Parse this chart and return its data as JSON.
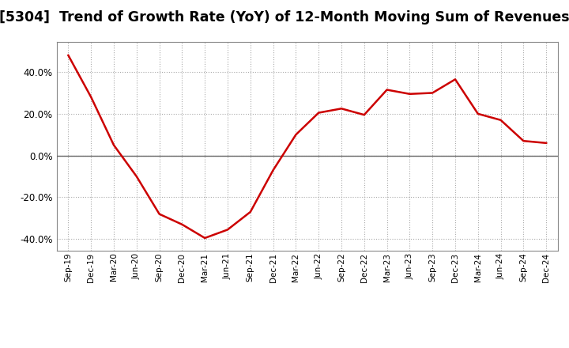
{
  "title": "[5304]  Trend of Growth Rate (YoY) of 12-Month Moving Sum of Revenues",
  "title_fontsize": 12.5,
  "line_color": "#cc0000",
  "line_width": 1.8,
  "background_color": "#ffffff",
  "grid_color": "#aaaaaa",
  "x_labels": [
    "Sep-19",
    "Dec-19",
    "Mar-20",
    "Jun-20",
    "Sep-20",
    "Dec-20",
    "Mar-21",
    "Jun-21",
    "Sep-21",
    "Dec-21",
    "Mar-22",
    "Jun-22",
    "Sep-22",
    "Dec-22",
    "Mar-23",
    "Jun-23",
    "Sep-23",
    "Dec-23",
    "Mar-24",
    "Jun-24",
    "Sep-24",
    "Dec-24"
  ],
  "y_values": [
    0.48,
    0.28,
    0.05,
    -0.1,
    -0.28,
    -0.33,
    -0.395,
    -0.355,
    -0.27,
    -0.07,
    0.1,
    0.205,
    0.225,
    0.195,
    0.315,
    0.295,
    0.3,
    0.365,
    0.2,
    0.17,
    0.07,
    0.06
  ],
  "ylim": [
    -0.455,
    0.545
  ],
  "yticks": [
    -0.4,
    -0.2,
    0.0,
    0.2,
    0.4
  ],
  "ytick_labels": [
    "-40.0%",
    "-20.0%",
    "0.0%",
    "20.0%",
    "40.0%"
  ]
}
